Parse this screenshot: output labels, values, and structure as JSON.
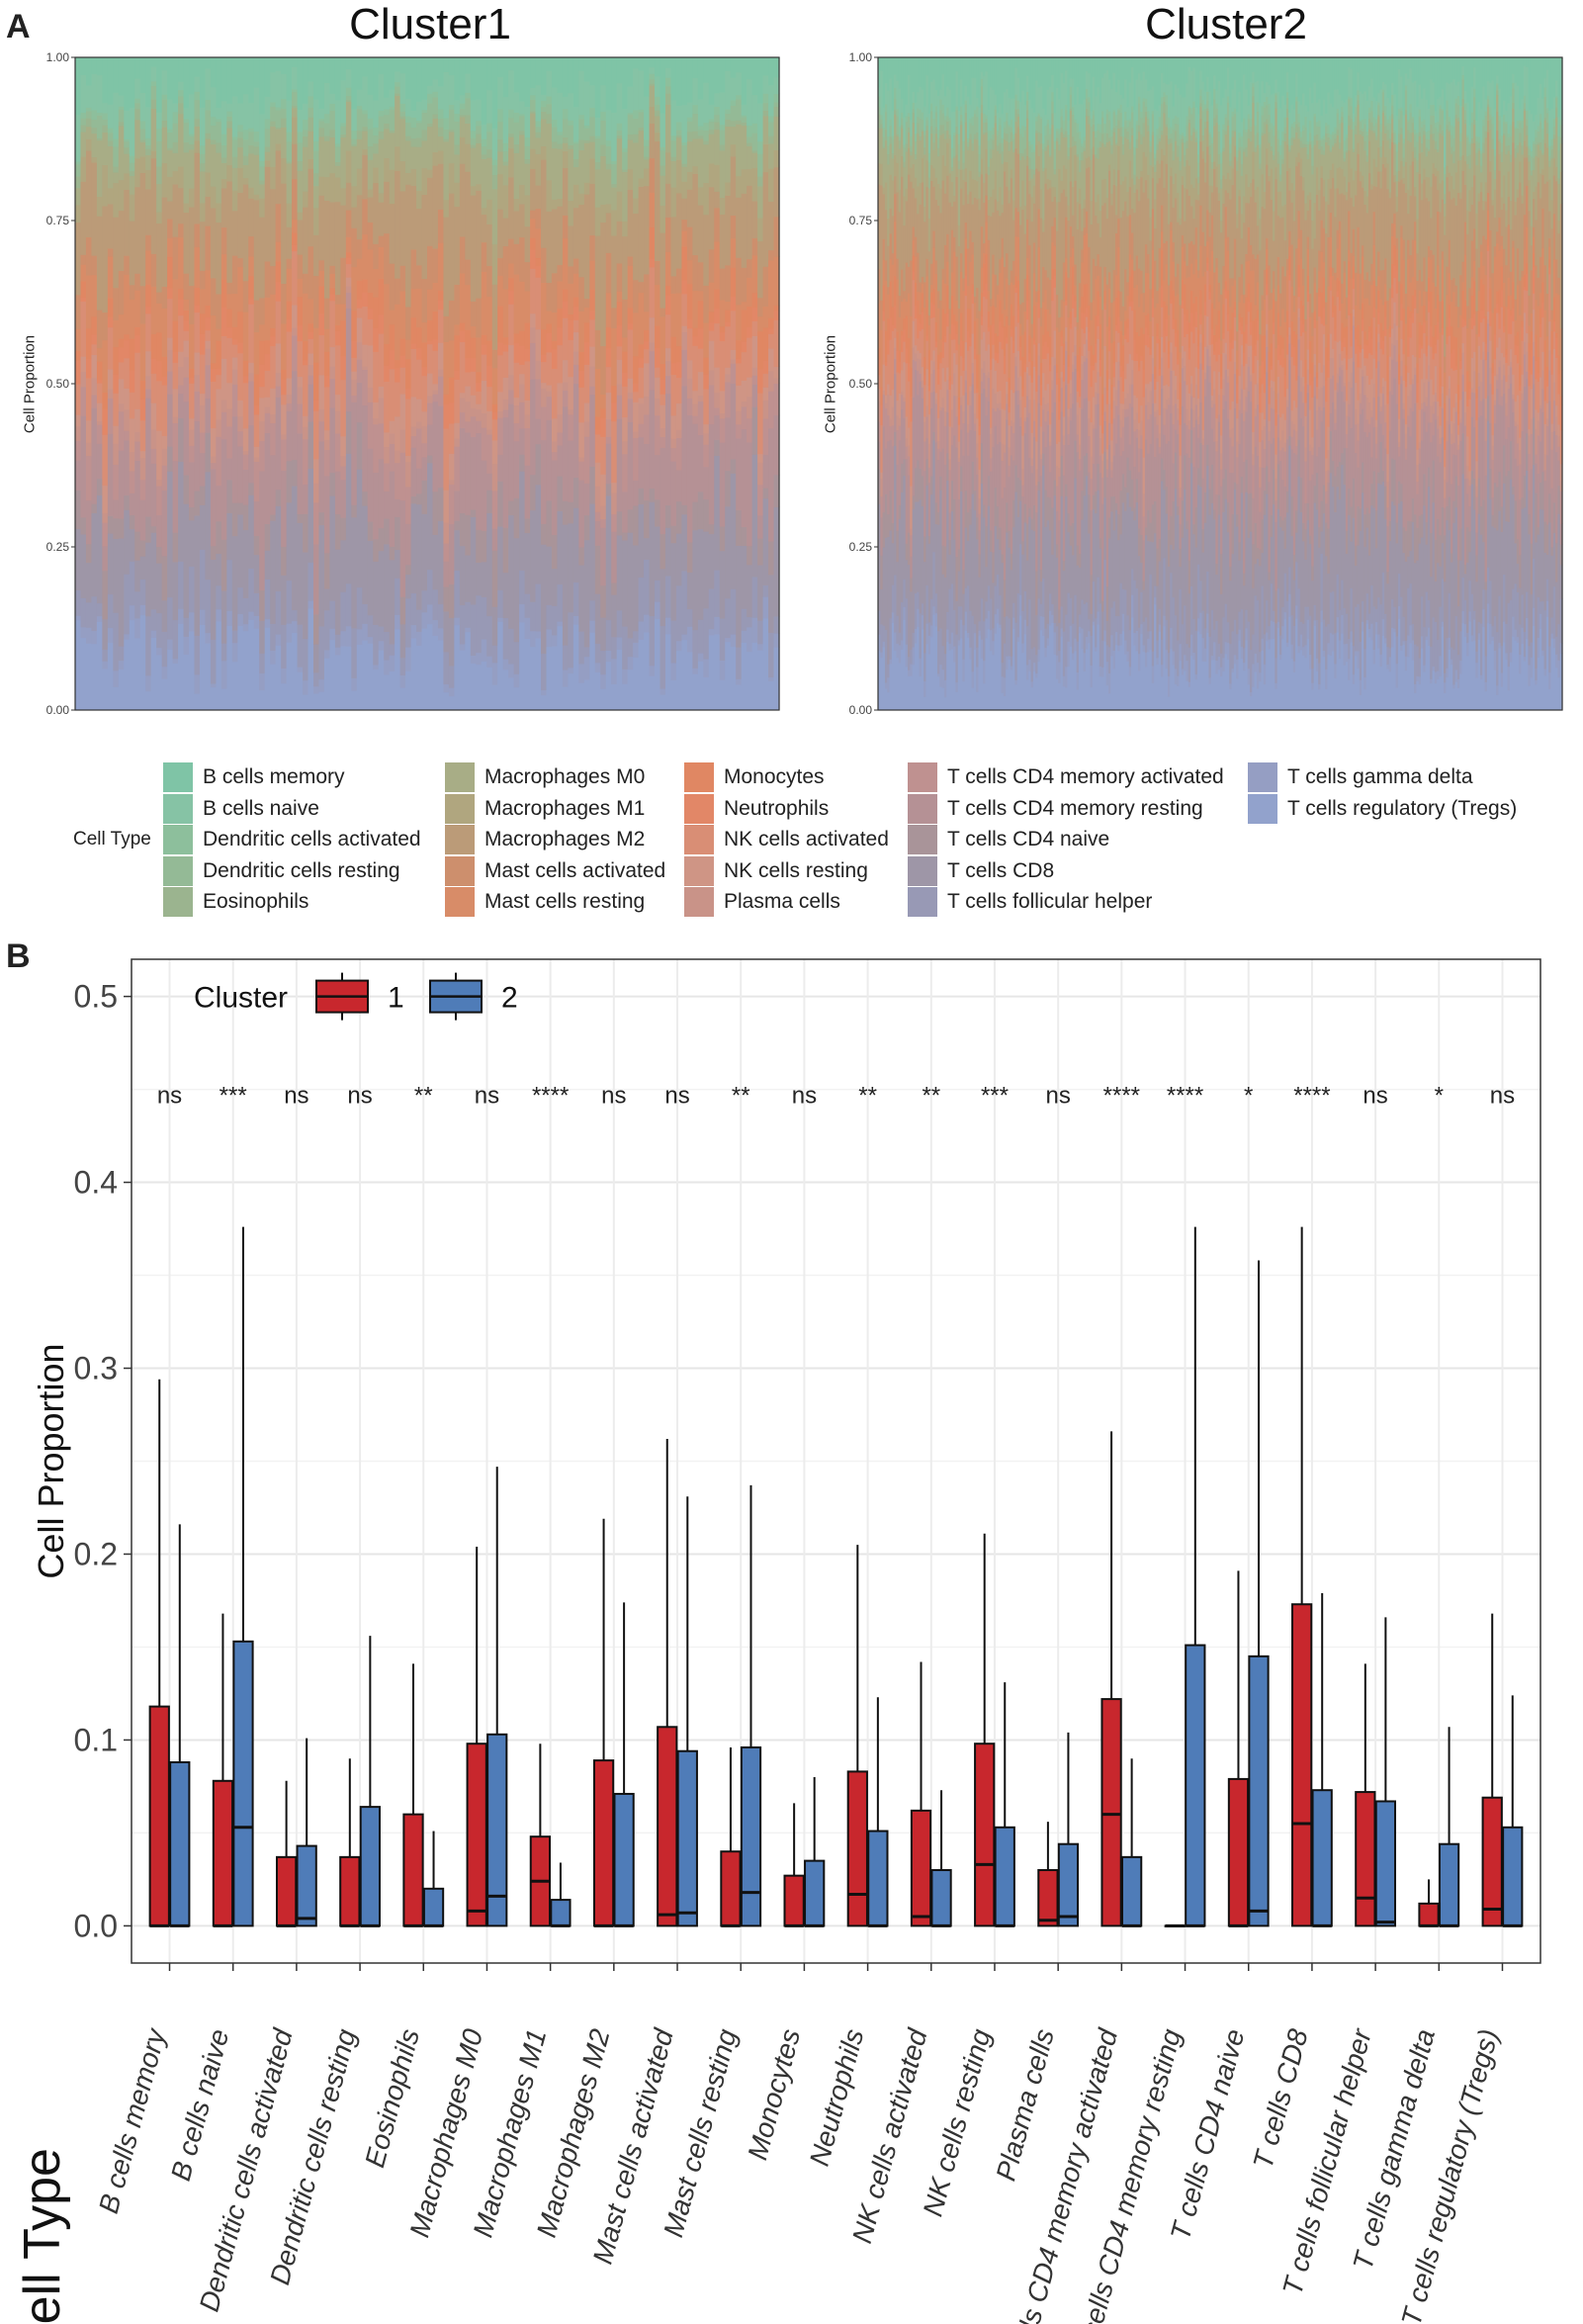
{
  "panel_a_label": "A",
  "panel_b_label": "B",
  "cell_types": [
    "B cells memory",
    "B cells naive",
    "Dendritic cells activated",
    "Dendritic cells resting",
    "Eosinophils",
    "Macrophages M0",
    "Macrophages M1",
    "Macrophages M2",
    "Mast cells activated",
    "Mast cells resting",
    "Monocytes",
    "Neutrophils",
    "NK cells activated",
    "NK cells resting",
    "Plasma cells",
    "T cells CD4 memory activated",
    "T cells CD4 memory resting",
    "T cells CD4 naive",
    "T cells CD8",
    "T cells follicular helper",
    "T cells gamma delta",
    "T cells regulatory (Tregs)"
  ],
  "cell_type_colors": [
    "#7fc4a6",
    "#86c3a5",
    "#8dbf9c",
    "#94ba96",
    "#9bb48f",
    "#a8ad86",
    "#b0a67f",
    "#bb9b78",
    "#cd8f6d",
    "#d88c68",
    "#e08763",
    "#e28767",
    "#d98e75",
    "#cf9585",
    "#c99388",
    "#bf9190",
    "#b59195",
    "#a99499",
    "#9e96a7",
    "#9899b5",
    "#959ec3",
    "#92a2cc"
  ],
  "chart_data": [
    {
      "type": "stacked-bar",
      "title": "Cluster1",
      "ylabel": "Cell Proportion",
      "ylim": [
        0,
        1
      ],
      "yticks": [
        "0.00",
        "0.25",
        "0.50",
        "0.75",
        "1.00"
      ],
      "num_samples": 130,
      "description_note": "Per-sample stacked proportions of 22 immune cell types; samples on x-axis without labels"
    },
    {
      "type": "stacked-bar",
      "title": "Cluster2",
      "ylabel": "Cell Proportion",
      "ylim": [
        0,
        1
      ],
      "yticks": [
        "0.00",
        "0.25",
        "0.50",
        "0.75",
        "1.00"
      ],
      "num_samples": 300
    },
    {
      "type": "boxplot",
      "xlabel": "Cell Type",
      "ylabel": "Cell Proportion",
      "ylim": [
        -0.02,
        0.52
      ],
      "yticks": [
        "0.0",
        "0.1",
        "0.2",
        "0.3",
        "0.4",
        "0.5"
      ],
      "legend_title": "Cluster",
      "series": [
        {
          "name": "1",
          "color": "#c8272d"
        },
        {
          "name": "2",
          "color": "#4f7cb8"
        }
      ],
      "significance": [
        "ns",
        "***",
        "ns",
        "ns",
        "**",
        "ns",
        "****",
        "ns",
        "ns",
        "**",
        "ns",
        "**",
        "**",
        "***",
        "ns",
        "****",
        "****",
        "*",
        "****",
        "ns",
        "*",
        "ns"
      ],
      "boxes": [
        {
          "c1": {
            "q1": 0.0,
            "med": 0.0,
            "q3": 0.118,
            "max": 0.294
          },
          "c2": {
            "q1": 0.0,
            "med": 0.0,
            "q3": 0.088,
            "max": 0.216
          }
        },
        {
          "c1": {
            "q1": 0.0,
            "med": 0.0,
            "q3": 0.078,
            "max": 0.168
          },
          "c2": {
            "q1": 0.0,
            "med": 0.053,
            "q3": 0.153,
            "max": 0.376
          }
        },
        {
          "c1": {
            "q1": 0.0,
            "med": 0.0,
            "q3": 0.037,
            "max": 0.078
          },
          "c2": {
            "q1": 0.0,
            "med": 0.004,
            "q3": 0.043,
            "max": 0.101
          }
        },
        {
          "c1": {
            "q1": 0.0,
            "med": 0.0,
            "q3": 0.037,
            "max": 0.09
          },
          "c2": {
            "q1": 0.0,
            "med": 0.0,
            "q3": 0.064,
            "max": 0.156
          }
        },
        {
          "c1": {
            "q1": 0.0,
            "med": 0.0,
            "q3": 0.06,
            "max": 0.141
          },
          "c2": {
            "q1": 0.0,
            "med": 0.0,
            "q3": 0.02,
            "max": 0.051
          }
        },
        {
          "c1": {
            "q1": 0.0,
            "med": 0.008,
            "q3": 0.098,
            "max": 0.204
          },
          "c2": {
            "q1": 0.0,
            "med": 0.016,
            "q3": 0.103,
            "max": 0.247
          }
        },
        {
          "c1": {
            "q1": 0.0,
            "med": 0.024,
            "q3": 0.048,
            "max": 0.098
          },
          "c2": {
            "q1": 0.0,
            "med": 0.0,
            "q3": 0.014,
            "max": 0.034
          }
        },
        {
          "c1": {
            "q1": 0.0,
            "med": 0.0,
            "q3": 0.089,
            "max": 0.219
          },
          "c2": {
            "q1": 0.0,
            "med": 0.0,
            "q3": 0.071,
            "max": 0.174
          }
        },
        {
          "c1": {
            "q1": 0.0,
            "med": 0.006,
            "q3": 0.107,
            "max": 0.262
          },
          "c2": {
            "q1": 0.0,
            "med": 0.007,
            "q3": 0.094,
            "max": 0.231
          }
        },
        {
          "c1": {
            "q1": 0.0,
            "med": 0.0,
            "q3": 0.04,
            "max": 0.096
          },
          "c2": {
            "q1": 0.0,
            "med": 0.018,
            "q3": 0.096,
            "max": 0.237
          }
        },
        {
          "c1": {
            "q1": 0.0,
            "med": 0.0,
            "q3": 0.027,
            "max": 0.066
          },
          "c2": {
            "q1": 0.0,
            "med": 0.0,
            "q3": 0.035,
            "max": 0.08
          }
        },
        {
          "c1": {
            "q1": 0.0,
            "med": 0.017,
            "q3": 0.083,
            "max": 0.205
          },
          "c2": {
            "q1": 0.0,
            "med": 0.0,
            "q3": 0.051,
            "max": 0.123
          }
        },
        {
          "c1": {
            "q1": 0.0,
            "med": 0.005,
            "q3": 0.062,
            "max": 0.142
          },
          "c2": {
            "q1": 0.0,
            "med": 0.0,
            "q3": 0.03,
            "max": 0.073
          }
        },
        {
          "c1": {
            "q1": 0.0,
            "med": 0.033,
            "q3": 0.098,
            "max": 0.211
          },
          "c2": {
            "q1": 0.0,
            "med": 0.0,
            "q3": 0.053,
            "max": 0.131
          }
        },
        {
          "c1": {
            "q1": 0.0,
            "med": 0.003,
            "q3": 0.03,
            "max": 0.056
          },
          "c2": {
            "q1": 0.0,
            "med": 0.005,
            "q3": 0.044,
            "max": 0.104
          }
        },
        {
          "c1": {
            "q1": 0.0,
            "med": 0.06,
            "q3": 0.122,
            "max": 0.266
          },
          "c2": {
            "q1": 0.0,
            "med": 0.0,
            "q3": 0.037,
            "max": 0.09
          }
        },
        {
          "c1": {
            "q1": 0.0,
            "med": 0.0,
            "q3": 0.0,
            "max": 0.0
          },
          "c2": {
            "q1": 0.0,
            "med": 0.0,
            "q3": 0.151,
            "max": 0.376
          }
        },
        {
          "c1": {
            "q1": 0.0,
            "med": 0.0,
            "q3": 0.079,
            "max": 0.191
          },
          "c2": {
            "q1": 0.0,
            "med": 0.008,
            "q3": 0.145,
            "max": 0.358
          }
        },
        {
          "c1": {
            "q1": 0.0,
            "med": 0.055,
            "q3": 0.173,
            "max": 0.376
          },
          "c2": {
            "q1": 0.0,
            "med": 0.0,
            "q3": 0.073,
            "max": 0.179
          }
        },
        {
          "c1": {
            "q1": 0.0,
            "med": 0.015,
            "q3": 0.072,
            "max": 0.141
          },
          "c2": {
            "q1": 0.0,
            "med": 0.002,
            "q3": 0.067,
            "max": 0.166
          }
        },
        {
          "c1": {
            "q1": 0.0,
            "med": 0.0,
            "q3": 0.012,
            "max": 0.025
          },
          "c2": {
            "q1": 0.0,
            "med": 0.0,
            "q3": 0.044,
            "max": 0.107
          }
        },
        {
          "c1": {
            "q1": 0.0,
            "med": 0.009,
            "q3": 0.069,
            "max": 0.168
          },
          "c2": {
            "q1": 0.0,
            "med": 0.0,
            "q3": 0.053,
            "max": 0.124
          }
        }
      ]
    }
  ],
  "legend_a": {
    "title": "Cell Type"
  }
}
